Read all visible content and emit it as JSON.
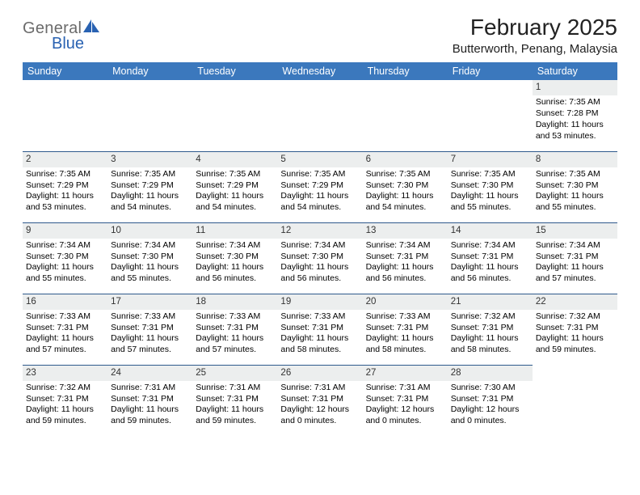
{
  "brand": {
    "line1": "General",
    "line2": "Blue"
  },
  "title": "February 2025",
  "location": "Butterworth, Penang, Malaysia",
  "colors": {
    "header_bg": "#3b78bd",
    "header_text": "#ffffff",
    "row_border": "#2f5a8c",
    "daynum_bg": "#eceeee",
    "brand_gray": "#6b6b6b",
    "brand_blue": "#2962b2"
  },
  "fonts": {
    "title_pt": 28,
    "location_pt": 15,
    "weekday_pt": 12.5,
    "body_pt": 10.5,
    "daynum_pt": 11.5
  },
  "weekdays": [
    "Sunday",
    "Monday",
    "Tuesday",
    "Wednesday",
    "Thursday",
    "Friday",
    "Saturday"
  ],
  "weeks": [
    [
      null,
      null,
      null,
      null,
      null,
      null,
      {
        "n": "1",
        "sr": "7:35 AM",
        "ss": "7:28 PM",
        "dl": "11 hours and 53 minutes."
      }
    ],
    [
      {
        "n": "2",
        "sr": "7:35 AM",
        "ss": "7:29 PM",
        "dl": "11 hours and 53 minutes."
      },
      {
        "n": "3",
        "sr": "7:35 AM",
        "ss": "7:29 PM",
        "dl": "11 hours and 54 minutes."
      },
      {
        "n": "4",
        "sr": "7:35 AM",
        "ss": "7:29 PM",
        "dl": "11 hours and 54 minutes."
      },
      {
        "n": "5",
        "sr": "7:35 AM",
        "ss": "7:29 PM",
        "dl": "11 hours and 54 minutes."
      },
      {
        "n": "6",
        "sr": "7:35 AM",
        "ss": "7:30 PM",
        "dl": "11 hours and 54 minutes."
      },
      {
        "n": "7",
        "sr": "7:35 AM",
        "ss": "7:30 PM",
        "dl": "11 hours and 55 minutes."
      },
      {
        "n": "8",
        "sr": "7:35 AM",
        "ss": "7:30 PM",
        "dl": "11 hours and 55 minutes."
      }
    ],
    [
      {
        "n": "9",
        "sr": "7:34 AM",
        "ss": "7:30 PM",
        "dl": "11 hours and 55 minutes."
      },
      {
        "n": "10",
        "sr": "7:34 AM",
        "ss": "7:30 PM",
        "dl": "11 hours and 55 minutes."
      },
      {
        "n": "11",
        "sr": "7:34 AM",
        "ss": "7:30 PM",
        "dl": "11 hours and 56 minutes."
      },
      {
        "n": "12",
        "sr": "7:34 AM",
        "ss": "7:30 PM",
        "dl": "11 hours and 56 minutes."
      },
      {
        "n": "13",
        "sr": "7:34 AM",
        "ss": "7:31 PM",
        "dl": "11 hours and 56 minutes."
      },
      {
        "n": "14",
        "sr": "7:34 AM",
        "ss": "7:31 PM",
        "dl": "11 hours and 56 minutes."
      },
      {
        "n": "15",
        "sr": "7:34 AM",
        "ss": "7:31 PM",
        "dl": "11 hours and 57 minutes."
      }
    ],
    [
      {
        "n": "16",
        "sr": "7:33 AM",
        "ss": "7:31 PM",
        "dl": "11 hours and 57 minutes."
      },
      {
        "n": "17",
        "sr": "7:33 AM",
        "ss": "7:31 PM",
        "dl": "11 hours and 57 minutes."
      },
      {
        "n": "18",
        "sr": "7:33 AM",
        "ss": "7:31 PM",
        "dl": "11 hours and 57 minutes."
      },
      {
        "n": "19",
        "sr": "7:33 AM",
        "ss": "7:31 PM",
        "dl": "11 hours and 58 minutes."
      },
      {
        "n": "20",
        "sr": "7:33 AM",
        "ss": "7:31 PM",
        "dl": "11 hours and 58 minutes."
      },
      {
        "n": "21",
        "sr": "7:32 AM",
        "ss": "7:31 PM",
        "dl": "11 hours and 58 minutes."
      },
      {
        "n": "22",
        "sr": "7:32 AM",
        "ss": "7:31 PM",
        "dl": "11 hours and 59 minutes."
      }
    ],
    [
      {
        "n": "23",
        "sr": "7:32 AM",
        "ss": "7:31 PM",
        "dl": "11 hours and 59 minutes."
      },
      {
        "n": "24",
        "sr": "7:31 AM",
        "ss": "7:31 PM",
        "dl": "11 hours and 59 minutes."
      },
      {
        "n": "25",
        "sr": "7:31 AM",
        "ss": "7:31 PM",
        "dl": "11 hours and 59 minutes."
      },
      {
        "n": "26",
        "sr": "7:31 AM",
        "ss": "7:31 PM",
        "dl": "12 hours and 0 minutes."
      },
      {
        "n": "27",
        "sr": "7:31 AM",
        "ss": "7:31 PM",
        "dl": "12 hours and 0 minutes."
      },
      {
        "n": "28",
        "sr": "7:30 AM",
        "ss": "7:31 PM",
        "dl": "12 hours and 0 minutes."
      },
      null
    ]
  ],
  "labels": {
    "sunrise": "Sunrise:",
    "sunset": "Sunset:",
    "daylight": "Daylight:"
  }
}
